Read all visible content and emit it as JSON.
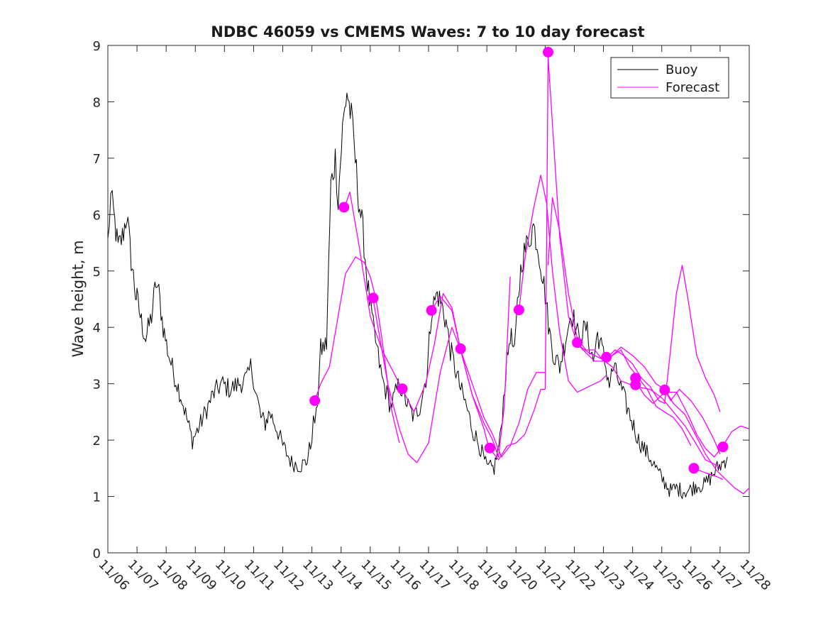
{
  "chart_data": {
    "type": "line",
    "title": "NDBC 46059 vs CMEMS Waves: 7 to 10 day forecast",
    "xlabel": "",
    "ylabel": "Wave height, m",
    "xlim": [
      0,
      22
    ],
    "ylim": [
      0,
      9
    ],
    "x_unit": "days since 11/06",
    "x_ticks": [
      0,
      1,
      2,
      3,
      4,
      5,
      6,
      7,
      8,
      9,
      10,
      11,
      12,
      13,
      14,
      15,
      16,
      17,
      18,
      19,
      20,
      21,
      22
    ],
    "x_tick_labels": [
      "11/06",
      "11/07",
      "11/08",
      "11/09",
      "11/10",
      "11/11",
      "11/12",
      "11/13",
      "11/14",
      "11/15",
      "11/16",
      "11/17",
      "11/18",
      "11/19",
      "11/20",
      "11/21",
      "11/22",
      "11/23",
      "11/24",
      "11/25",
      "11/26",
      "11/27",
      "11/28"
    ],
    "y_ticks": [
      0,
      1,
      2,
      3,
      4,
      5,
      6,
      7,
      8,
      9
    ],
    "y_tick_labels": [
      "0",
      "1",
      "2",
      "3",
      "4",
      "5",
      "6",
      "7",
      "8",
      "9"
    ],
    "legend": {
      "position": "top-right",
      "entries": [
        "Buoy",
        "Forecast"
      ]
    },
    "colors": {
      "buoy": "#000000",
      "forecast": "#ff00ff",
      "axis": "#262626"
    },
    "series": [
      {
        "name": "Buoy",
        "color": "#000000",
        "jitter": 0.22,
        "x": [
          0,
          0.1,
          0.2,
          0.35,
          0.5,
          0.65,
          0.8,
          0.95,
          1.0,
          1.15,
          1.3,
          1.5,
          1.65,
          1.75,
          1.9,
          2.05,
          2.25,
          2.5,
          2.75,
          2.9,
          3.1,
          3.35,
          3.6,
          3.9,
          4.2,
          4.5,
          4.8,
          4.9,
          5.0,
          5.1,
          5.25,
          5.4,
          5.55,
          5.8,
          6.0,
          6.3,
          6.6,
          6.8,
          6.95,
          7.05,
          7.15,
          7.3,
          7.5,
          7.65,
          7.8,
          7.9,
          8.05,
          8.2,
          8.35,
          8.45,
          8.6,
          8.75,
          8.9,
          9.1,
          9.4,
          9.7,
          10.0,
          10.3,
          10.5,
          10.7,
          10.95,
          11.1,
          11.3,
          11.45,
          11.6,
          11.75,
          11.9,
          12.1,
          12.3,
          12.5,
          12.75,
          13.0,
          13.25,
          13.45,
          13.65,
          13.8,
          13.95,
          14.05,
          14.2,
          14.4,
          14.6,
          14.8,
          15.0,
          15.15,
          15.3,
          15.5,
          15.7,
          15.9,
          16.15,
          16.4,
          16.65,
          16.8,
          17.0,
          17.2,
          17.35,
          17.55,
          17.8,
          18.0,
          18.2,
          18.45,
          18.7,
          18.9,
          19.1,
          19.3,
          19.5,
          19.7,
          19.9,
          20.05,
          20.2,
          20.45,
          20.7,
          20.9,
          21.1,
          21.25
        ],
        "y": [
          5.5,
          6.3,
          6.0,
          5.4,
          5.6,
          6.0,
          5.2,
          4.6,
          4.5,
          4.1,
          3.8,
          4.2,
          4.8,
          4.6,
          4.0,
          3.6,
          3.2,
          2.8,
          2.3,
          2.0,
          2.2,
          2.5,
          2.8,
          3.0,
          2.9,
          3.0,
          3.1,
          3.3,
          3.1,
          2.8,
          2.4,
          2.3,
          2.5,
          2.2,
          1.9,
          1.6,
          1.55,
          1.6,
          1.9,
          2.3,
          2.4,
          3.6,
          3.7,
          6.5,
          7.0,
          6.3,
          7.5,
          8.2,
          7.7,
          7.2,
          6.3,
          5.7,
          4.8,
          4.0,
          3.1,
          2.6,
          3.0,
          2.6,
          2.4,
          2.6,
          3.2,
          4.3,
          4.6,
          4.4,
          4.1,
          3.6,
          3.3,
          2.9,
          2.6,
          2.2,
          1.9,
          1.5,
          1.5,
          2.0,
          3.2,
          3.9,
          3.5,
          4.4,
          5.2,
          5.5,
          5.8,
          5.3,
          4.6,
          3.9,
          3.5,
          3.3,
          3.8,
          4.3,
          3.8,
          4.0,
          3.4,
          3.9,
          3.5,
          3.0,
          3.3,
          3.0,
          2.6,
          2.3,
          2.0,
          1.8,
          1.6,
          1.4,
          1.25,
          1.1,
          1.15,
          1.1,
          1.1,
          1.15,
          1.2,
          1.2,
          1.35,
          1.5,
          1.6,
          1.7
        ]
      },
      {
        "name": "Forecast",
        "color": "#ff00ff",
        "segments": [
          {
            "x": [
              7.1,
              7.3,
              7.6,
              7.9,
              8.15,
              8.5,
              8.8,
              9.0,
              9.2,
              9.4,
              9.7,
              10.0
            ],
            "y": [
              2.7,
              3.0,
              3.3,
              4.2,
              4.95,
              5.25,
              5.15,
              4.9,
              4.5,
              3.8,
              2.6,
              1.95
            ]
          },
          {
            "x": [
              8.1,
              8.3,
              8.6,
              9.0,
              9.4,
              9.7,
              10.0
            ],
            "y": [
              6.1,
              6.4,
              5.5,
              4.2,
              3.6,
              3.3,
              3.0
            ]
          },
          {
            "x": [
              9.1,
              9.3,
              9.6,
              10.0,
              10.3,
              10.6,
              11.0,
              11.4,
              11.8,
              12.1
            ],
            "y": [
              4.5,
              3.9,
              3.0,
              2.2,
              1.75,
              1.6,
              1.95,
              3.2,
              4.0,
              3.6
            ]
          },
          {
            "x": [
              10.1,
              10.5,
              10.9,
              11.2,
              11.5,
              11.8,
              12.1,
              12.5,
              12.9,
              13.1
            ],
            "y": [
              2.9,
              2.5,
              3.0,
              3.7,
              4.6,
              4.35,
              3.6,
              2.8,
              2.2,
              1.8
            ]
          },
          {
            "x": [
              11.1,
              11.4,
              11.8,
              12.1,
              12.5,
              12.9,
              13.2,
              13.4,
              13.6,
              13.8
            ],
            "y": [
              4.3,
              4.55,
              4.3,
              3.6,
              2.8,
              2.3,
              2.0,
              1.7,
              2.6,
              4.9
            ]
          },
          {
            "x": [
              12.1,
              12.5,
              12.9,
              13.2,
              13.5,
              13.8,
              14.1,
              14.4,
              14.7,
              15.0
            ],
            "y": [
              3.6,
              3.0,
              2.4,
              2.1,
              1.7,
              1.9,
              2.3,
              2.9,
              3.2,
              3.2
            ]
          },
          {
            "x": [
              13.1,
              13.4,
              13.7,
              14.0,
              14.3,
              14.6,
              14.85,
              15.0
            ],
            "y": [
              1.85,
              1.65,
              1.9,
              1.95,
              2.1,
              2.5,
              2.9,
              2.9
            ]
          },
          {
            "x": [
              14.1,
              14.3,
              14.6,
              14.85,
              15.05,
              15.25,
              15.5,
              15.8,
              16.1,
              16.5,
              16.9,
              17.1
            ],
            "y": [
              4.3,
              5.2,
              6.1,
              6.7,
              6.2,
              5.0,
              3.9,
              3.05,
              2.85,
              2.95,
              3.05,
              3.15
            ]
          },
          {
            "x": [
              15.0,
              15.05,
              15.1,
              15.3,
              15.5,
              15.8,
              16.1,
              16.5,
              16.9,
              17.3,
              17.6,
              18.1,
              18.6,
              19.0,
              19.4,
              19.8,
              20.1,
              20.5,
              20.9,
              21.0
            ],
            "y": [
              2.9,
              5.5,
              8.8,
              7.2,
              5.6,
              4.2,
              3.7,
              3.55,
              3.45,
              3.3,
              3.05,
              2.95,
              2.9,
              2.75,
              2.5,
              2.25,
              2.0,
              1.65,
              1.55,
              1.5
            ]
          },
          {
            "x": [
              15.1,
              15.25,
              15.5,
              15.8,
              16.1,
              16.4,
              16.7,
              17.0,
              17.3,
              17.6,
              17.9,
              18.2,
              18.5,
              18.8,
              19.1,
              19.4,
              19.7,
              20.0
            ],
            "y": [
              5.1,
              6.3,
              5.7,
              4.6,
              3.8,
              3.6,
              3.6,
              3.4,
              3.5,
              3.6,
              3.3,
              3.1,
              2.9,
              2.6,
              2.5,
              2.4,
              2.2,
              1.9
            ]
          },
          {
            "x": [
              16.1,
              16.4,
              16.7,
              17.0,
              17.3,
              17.6,
              18.0,
              18.4,
              18.8,
              19.1,
              19.3,
              19.6,
              20.0,
              20.4,
              20.8,
              21.0
            ],
            "y": [
              3.7,
              3.55,
              3.4,
              3.4,
              3.5,
              3.65,
              3.5,
              3.3,
              3.0,
              2.9,
              2.7,
              2.9,
              2.7,
              2.4,
              2.0,
              1.75
            ]
          },
          {
            "x": [
              17.1,
              17.4,
              17.7,
              18.0,
              18.3,
              18.6,
              18.9,
              19.1,
              19.3,
              19.5,
              19.7,
              19.9,
              20.2,
              20.5,
              20.8,
              21.0
            ],
            "y": [
              3.45,
              3.6,
              3.5,
              3.35,
              3.1,
              2.95,
              2.7,
              2.65,
              3.6,
              4.6,
              5.1,
              4.5,
              3.5,
              3.1,
              2.8,
              2.5
            ]
          },
          {
            "x": [
              18.1,
              18.4,
              18.7,
              19.1,
              19.5,
              19.9,
              20.2,
              20.5,
              20.8,
              21.1,
              21.4,
              21.7,
              22.0
            ],
            "y": [
              3.05,
              2.8,
              2.65,
              2.85,
              2.85,
              2.45,
              2.1,
              1.85,
              1.7,
              1.9,
              2.15,
              2.25,
              2.2
            ]
          },
          {
            "x": [
              19.1,
              19.4,
              19.8,
              20.1,
              20.5,
              20.9,
              21.2,
              21.5,
              21.8,
              22.0
            ],
            "y": [
              2.9,
              2.65,
              2.45,
              2.15,
              1.75,
              1.45,
              1.3,
              1.15,
              1.05,
              1.15
            ]
          },
          {
            "x": [
              20.1,
              20.5,
              20.9,
              21.1
            ],
            "y": [
              1.5,
              1.42,
              1.35,
              1.3
            ]
          }
        ],
        "markers": {
          "x": [
            7.1,
            8.1,
            9.1,
            10.1,
            11.1,
            12.1,
            13.1,
            14.1,
            15.1,
            16.1,
            17.1,
            18.1,
            18.1,
            19.1,
            20.1,
            21.1
          ],
          "y": [
            2.7,
            6.13,
            4.52,
            2.91,
            4.3,
            3.62,
            1.86,
            4.31,
            8.88,
            3.73,
            3.47,
            3.1,
            2.98,
            2.89,
            1.5,
            1.88
          ]
        }
      }
    ]
  }
}
